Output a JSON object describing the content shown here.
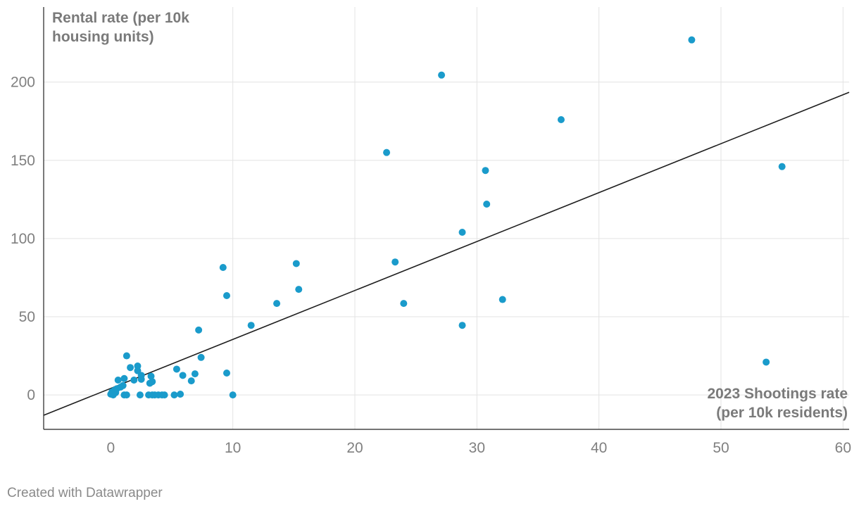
{
  "chart_data": {
    "type": "scatter",
    "title": "",
    "ylabel_lines": [
      "Rental rate (per 10k",
      "housing units)"
    ],
    "xlabel_lines": [
      "2023 Shootings rate",
      "(per 10k residents)"
    ],
    "xlim": [
      -5.5,
      60.5
    ],
    "ylim": [
      -22,
      248
    ],
    "x_ticks": [
      0,
      10,
      20,
      30,
      40,
      50,
      60
    ],
    "y_ticks": [
      0,
      50,
      100,
      150,
      200
    ],
    "grid": true,
    "trendline": {
      "from": [
        -5.5,
        -13
      ],
      "to": [
        60.5,
        193.5
      ]
    },
    "point_color": "#1a9bcb",
    "line_color": "#1e1e1e",
    "points": [
      [
        47.6,
        227
      ],
      [
        27.1,
        204.5
      ],
      [
        36.9,
        176
      ],
      [
        22.6,
        155
      ],
      [
        30.7,
        143.5
      ],
      [
        55.0,
        146
      ],
      [
        30.8,
        122
      ],
      [
        28.8,
        104
      ],
      [
        23.3,
        85
      ],
      [
        15.2,
        84
      ],
      [
        9.2,
        81.5
      ],
      [
        15.4,
        67.5
      ],
      [
        9.5,
        63.5
      ],
      [
        32.1,
        61
      ],
      [
        13.6,
        58.5
      ],
      [
        24.0,
        58.5
      ],
      [
        28.8,
        44.5
      ],
      [
        11.5,
        44.5
      ],
      [
        7.2,
        41.5
      ],
      [
        53.7,
        21
      ],
      [
        7.4,
        24
      ],
      [
        5.4,
        16.5
      ],
      [
        5.9,
        12.5
      ],
      [
        6.9,
        13.5
      ],
      [
        6.6,
        9
      ],
      [
        9.5,
        14
      ],
      [
        10.0,
        0
      ],
      [
        5.7,
        0.5
      ],
      [
        5.2,
        0
      ],
      [
        1.3,
        25
      ],
      [
        2.2,
        18.5
      ],
      [
        1.6,
        17.5
      ],
      [
        2.2,
        15.5
      ],
      [
        2.5,
        12.5
      ],
      [
        2.5,
        10
      ],
      [
        1.9,
        9.5
      ],
      [
        3.3,
        12
      ],
      [
        3.4,
        8.5
      ],
      [
        3.2,
        7.5
      ],
      [
        1.1,
        10.5
      ],
      [
        0.6,
        9.5
      ],
      [
        1.0,
        6
      ],
      [
        0.8,
        5
      ],
      [
        0.5,
        4
      ],
      [
        0.3,
        3
      ],
      [
        0.1,
        2
      ],
      [
        0.4,
        1.5
      ],
      [
        0.0,
        0.5
      ],
      [
        0.2,
        0
      ],
      [
        1.1,
        0
      ],
      [
        1.3,
        0
      ],
      [
        2.4,
        0
      ],
      [
        3.1,
        0
      ],
      [
        3.4,
        0
      ],
      [
        3.6,
        0
      ],
      [
        3.9,
        0
      ],
      [
        4.2,
        0
      ],
      [
        4.4,
        0
      ]
    ]
  },
  "footer": {
    "credit": "Created with Datawrapper"
  }
}
